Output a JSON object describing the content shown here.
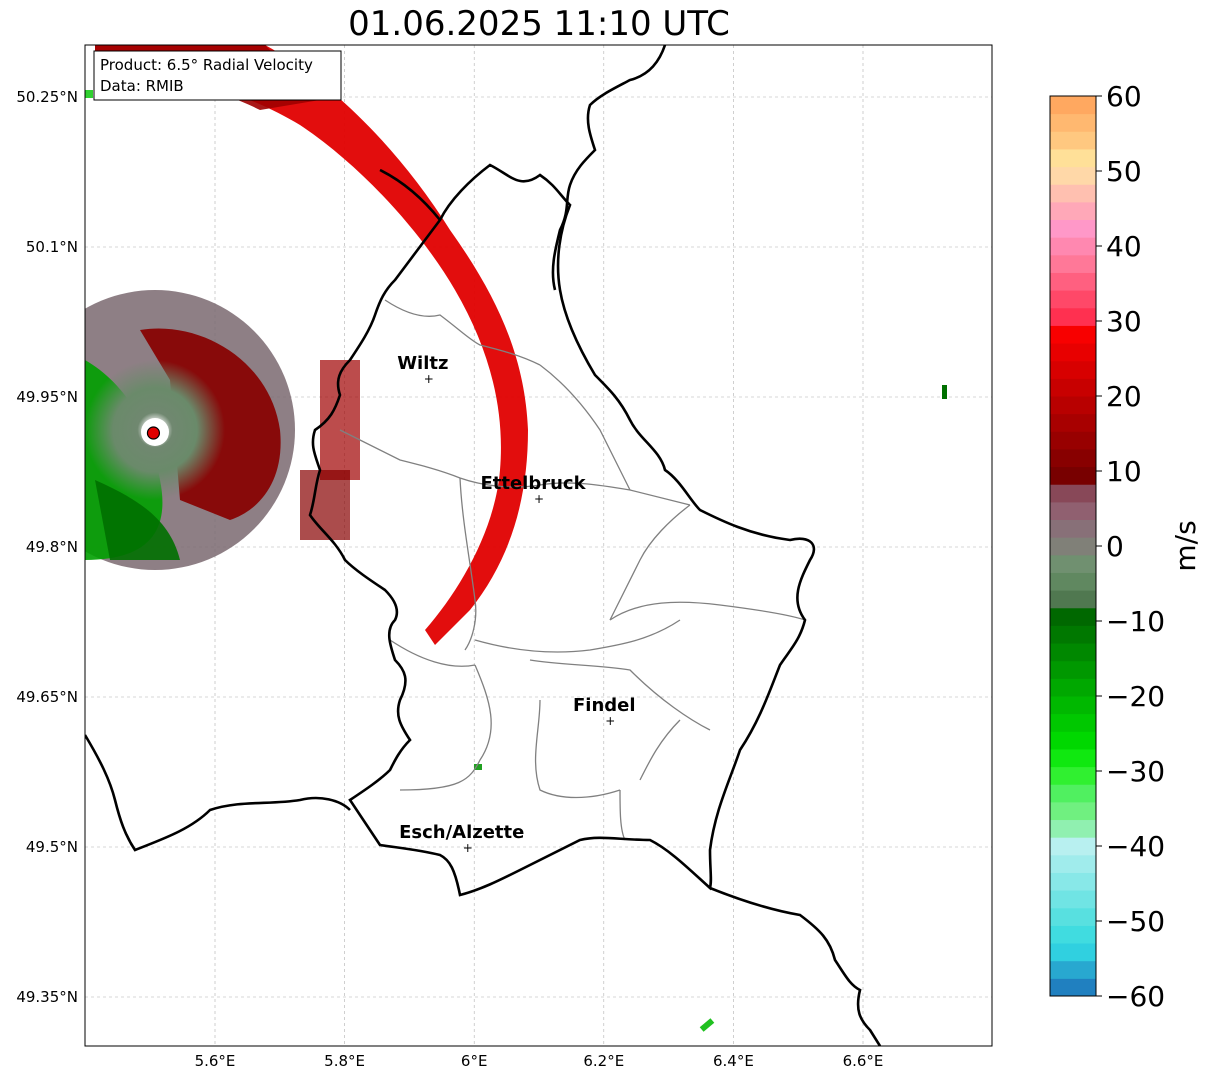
{
  "title": "01.06.2025 11:10 UTC",
  "info_box": {
    "product": "Product: 6.5° Radial Velocity",
    "source": "Data: RMIB"
  },
  "x_ticks": [
    "5.6°E",
    "5.8°E",
    "6°E",
    "6.2°E",
    "6.4°E",
    "6.6°E"
  ],
  "y_ticks": [
    "50.25°N",
    "50.1°N",
    "49.95°N",
    "49.8°N",
    "49.65°N",
    "49.5°N",
    "49.35°N"
  ],
  "cities": [
    {
      "name": "Wiltz",
      "lon": 5.93,
      "lat": 49.968
    },
    {
      "name": "Ettelbruck",
      "lon": 6.1,
      "lat": 49.848
    },
    {
      "name": "Findel",
      "lon": 6.21,
      "lat": 49.626
    },
    {
      "name": "Esch/Alzette",
      "lon": 5.99,
      "lat": 49.499
    }
  ],
  "radar_site": {
    "lon": 5.505,
    "lat": 49.914
  },
  "colorbar": {
    "unit": "m/s",
    "min": -60,
    "max": 60,
    "ticks": [
      "60",
      "50",
      "40",
      "30",
      "20",
      "10",
      "0",
      "−10",
      "−20",
      "−30",
      "−40",
      "−50",
      "−60"
    ],
    "colors": [
      "#2080c0",
      "#28a8d0",
      "#30d0e0",
      "#40dce0",
      "#58e0e0",
      "#70e4e4",
      "#88e8e8",
      "#a0ecec",
      "#b8f0f0",
      "#90f0b0",
      "#70f080",
      "#50f060",
      "#30f030",
      "#10e810",
      "#00d800",
      "#00c800",
      "#00b800",
      "#00a800",
      "#009800",
      "#008800",
      "#007800",
      "#006800",
      "#507850",
      "#608860",
      "#709070",
      "#808078",
      "#887078",
      "#906070",
      "#884858",
      "#780000",
      "#880000",
      "#980000",
      "#a80000",
      "#b80000",
      "#c80000",
      "#d80000",
      "#e80000",
      "#f80000",
      "#ff3050",
      "#ff4868",
      "#ff6080",
      "#ff7898",
      "#ff88b0",
      "#ff98c8",
      "#ffa8b8",
      "#ffc0b0",
      "#ffd8a8",
      "#ffe098",
      "#ffc880",
      "#ffb870",
      "#ffa860"
    ]
  },
  "colors": {
    "border_country": "#000000",
    "border_canton": "#808080",
    "grid": "#b0b0b0"
  }
}
